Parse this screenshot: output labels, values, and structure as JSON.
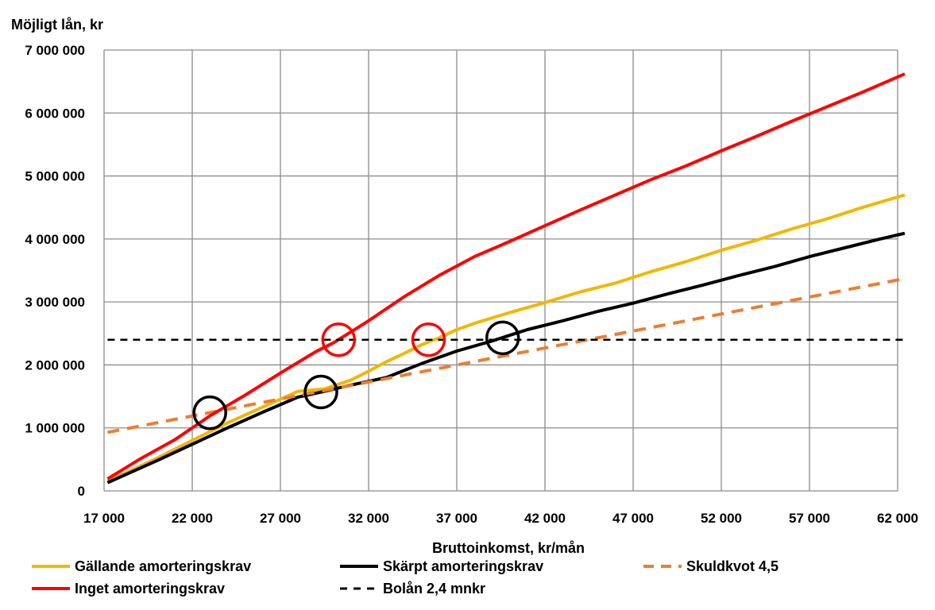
{
  "chart_data": {
    "type": "line",
    "title": "",
    "ylabel": "Möjligt lån, kr",
    "xlabel": "Bruttoinkomst, kr/mån",
    "xlim": [
      17000,
      62000
    ],
    "ylim": [
      0,
      7000000
    ],
    "x_ticks": [
      17000,
      22000,
      27000,
      32000,
      37000,
      42000,
      47000,
      52000,
      57000,
      62000
    ],
    "x_tick_labels": [
      "17 000",
      "22 000",
      "27 000",
      "32 000",
      "37 000",
      "42 000",
      "47 000",
      "52 000",
      "57 000",
      "62 000"
    ],
    "y_ticks": [
      0,
      1000000,
      2000000,
      3000000,
      4000000,
      5000000,
      6000000,
      7000000
    ],
    "y_tick_labels": [
      "0",
      "1 000 000",
      "2 000 000",
      "3 000 000",
      "4 000 000",
      "5 000 000",
      "6 000 000",
      "7 000 000"
    ],
    "grid": true,
    "legend_position": "bottom",
    "series": [
      {
        "name": "Gällande amorteringskrav",
        "color": "#F2B700",
        "style": "solid",
        "points": [
          [
            17200,
            150000
          ],
          [
            20000,
            520000
          ],
          [
            22000,
            800000
          ],
          [
            24000,
            1080000
          ],
          [
            26000,
            1330000
          ],
          [
            28000,
            1580000
          ],
          [
            29500,
            1620000
          ],
          [
            31000,
            1760000
          ],
          [
            32000,
            1900000
          ],
          [
            33000,
            2050000
          ],
          [
            34000,
            2180000
          ],
          [
            35000,
            2320000
          ],
          [
            36000,
            2430000
          ],
          [
            37000,
            2560000
          ],
          [
            38000,
            2660000
          ],
          [
            40000,
            2830000
          ],
          [
            42000,
            2990000
          ],
          [
            44000,
            3160000
          ],
          [
            46000,
            3300000
          ],
          [
            48000,
            3480000
          ],
          [
            50000,
            3640000
          ],
          [
            52000,
            3820000
          ],
          [
            54000,
            3980000
          ],
          [
            56000,
            4160000
          ],
          [
            58000,
            4320000
          ],
          [
            60000,
            4500000
          ],
          [
            62400,
            4700000
          ]
        ]
      },
      {
        "name": "Skärpt amorteringskrav",
        "color": "#000000",
        "style": "solid",
        "points": [
          [
            17200,
            130000
          ],
          [
            20000,
            480000
          ],
          [
            22000,
            740000
          ],
          [
            24000,
            1000000
          ],
          [
            26000,
            1250000
          ],
          [
            28000,
            1490000
          ],
          [
            29500,
            1580000
          ],
          [
            31000,
            1680000
          ],
          [
            33000,
            1800000
          ],
          [
            35000,
            2020000
          ],
          [
            37000,
            2220000
          ],
          [
            39000,
            2380000
          ],
          [
            41000,
            2560000
          ],
          [
            43000,
            2700000
          ],
          [
            45000,
            2850000
          ],
          [
            47000,
            2980000
          ],
          [
            49000,
            3130000
          ],
          [
            51000,
            3270000
          ],
          [
            53000,
            3420000
          ],
          [
            55000,
            3560000
          ],
          [
            57000,
            3720000
          ],
          [
            59000,
            3860000
          ],
          [
            61000,
            4000000
          ],
          [
            62400,
            4090000
          ]
        ]
      },
      {
        "name": "Skuldkvot 4,5",
        "color": "#ED7D31",
        "style": "dashed",
        "points": [
          [
            17200,
            930000
          ],
          [
            62400,
            3370000
          ]
        ]
      },
      {
        "name": "Inget amorteringskrav",
        "color": "#FF0000",
        "style": "solid",
        "points": [
          [
            17200,
            190000
          ],
          [
            19000,
            500000
          ],
          [
            21000,
            810000
          ],
          [
            23000,
            1190000
          ],
          [
            25000,
            1520000
          ],
          [
            27000,
            1870000
          ],
          [
            29000,
            2210000
          ],
          [
            30000,
            2350000
          ],
          [
            32000,
            2700000
          ],
          [
            34000,
            3080000
          ],
          [
            36000,
            3420000
          ],
          [
            38000,
            3720000
          ],
          [
            40000,
            3960000
          ],
          [
            42000,
            4210000
          ],
          [
            44000,
            4460000
          ],
          [
            46000,
            4700000
          ],
          [
            48000,
            4940000
          ],
          [
            50000,
            5160000
          ],
          [
            52000,
            5400000
          ],
          [
            54000,
            5630000
          ],
          [
            56000,
            5870000
          ],
          [
            58000,
            6100000
          ],
          [
            60000,
            6330000
          ],
          [
            62400,
            6620000
          ]
        ]
      },
      {
        "name": "Bolån 2,4 mnkr",
        "color": "#000000",
        "style": "dashed",
        "points": [
          [
            17200,
            2400000
          ],
          [
            62400,
            2400000
          ]
        ]
      }
    ],
    "annotations": [
      {
        "type": "circle",
        "color": "#000000",
        "x": 23000,
        "y": 1240000
      },
      {
        "type": "circle",
        "color": "#000000",
        "x": 29300,
        "y": 1570000
      },
      {
        "type": "circle",
        "color": "#FF0000",
        "x": 30300,
        "y": 2400000
      },
      {
        "type": "circle",
        "color": "#FF0000",
        "x": 35400,
        "y": 2400000
      },
      {
        "type": "circle",
        "color": "#000000",
        "x": 39600,
        "y": 2430000
      }
    ],
    "legend": [
      {
        "name": "Gällande amorteringskrav",
        "color": "#F2B700",
        "style": "solid"
      },
      {
        "name": "Skärpt amorteringskrav",
        "color": "#000000",
        "style": "solid"
      },
      {
        "name": "Skuldkvot 4,5",
        "color": "#ED7D31",
        "style": "dashed"
      },
      {
        "name": "Inget amorteringskrav",
        "color": "#FF0000",
        "style": "solid"
      },
      {
        "name": "Bolån 2,4 mnkr",
        "color": "#000000",
        "style": "dashed"
      }
    ]
  }
}
